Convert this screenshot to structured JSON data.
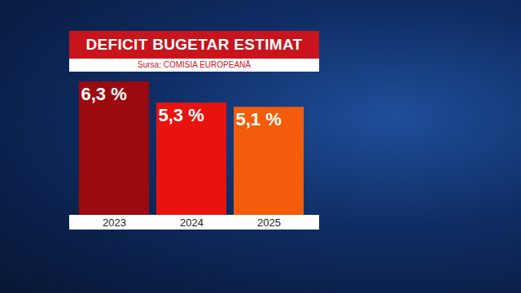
{
  "chart_data": {
    "type": "bar",
    "title": "DEFICIT BUGETAR ESTIMAT",
    "subtitle": "Sursa: COMISIA EUROPEANĂ",
    "categories": [
      "2023",
      "2024",
      "2025"
    ],
    "values": [
      6.3,
      5.3,
      5.1
    ],
    "value_labels": [
      "6,3 %",
      "5,3 %",
      "5,1 %"
    ],
    "colors": [
      "#9b0a0e",
      "#e8130f",
      "#f25c0a"
    ],
    "ylim": [
      0,
      6.3
    ],
    "data_labels": true,
    "tick_labels": "x",
    "grid": false
  }
}
